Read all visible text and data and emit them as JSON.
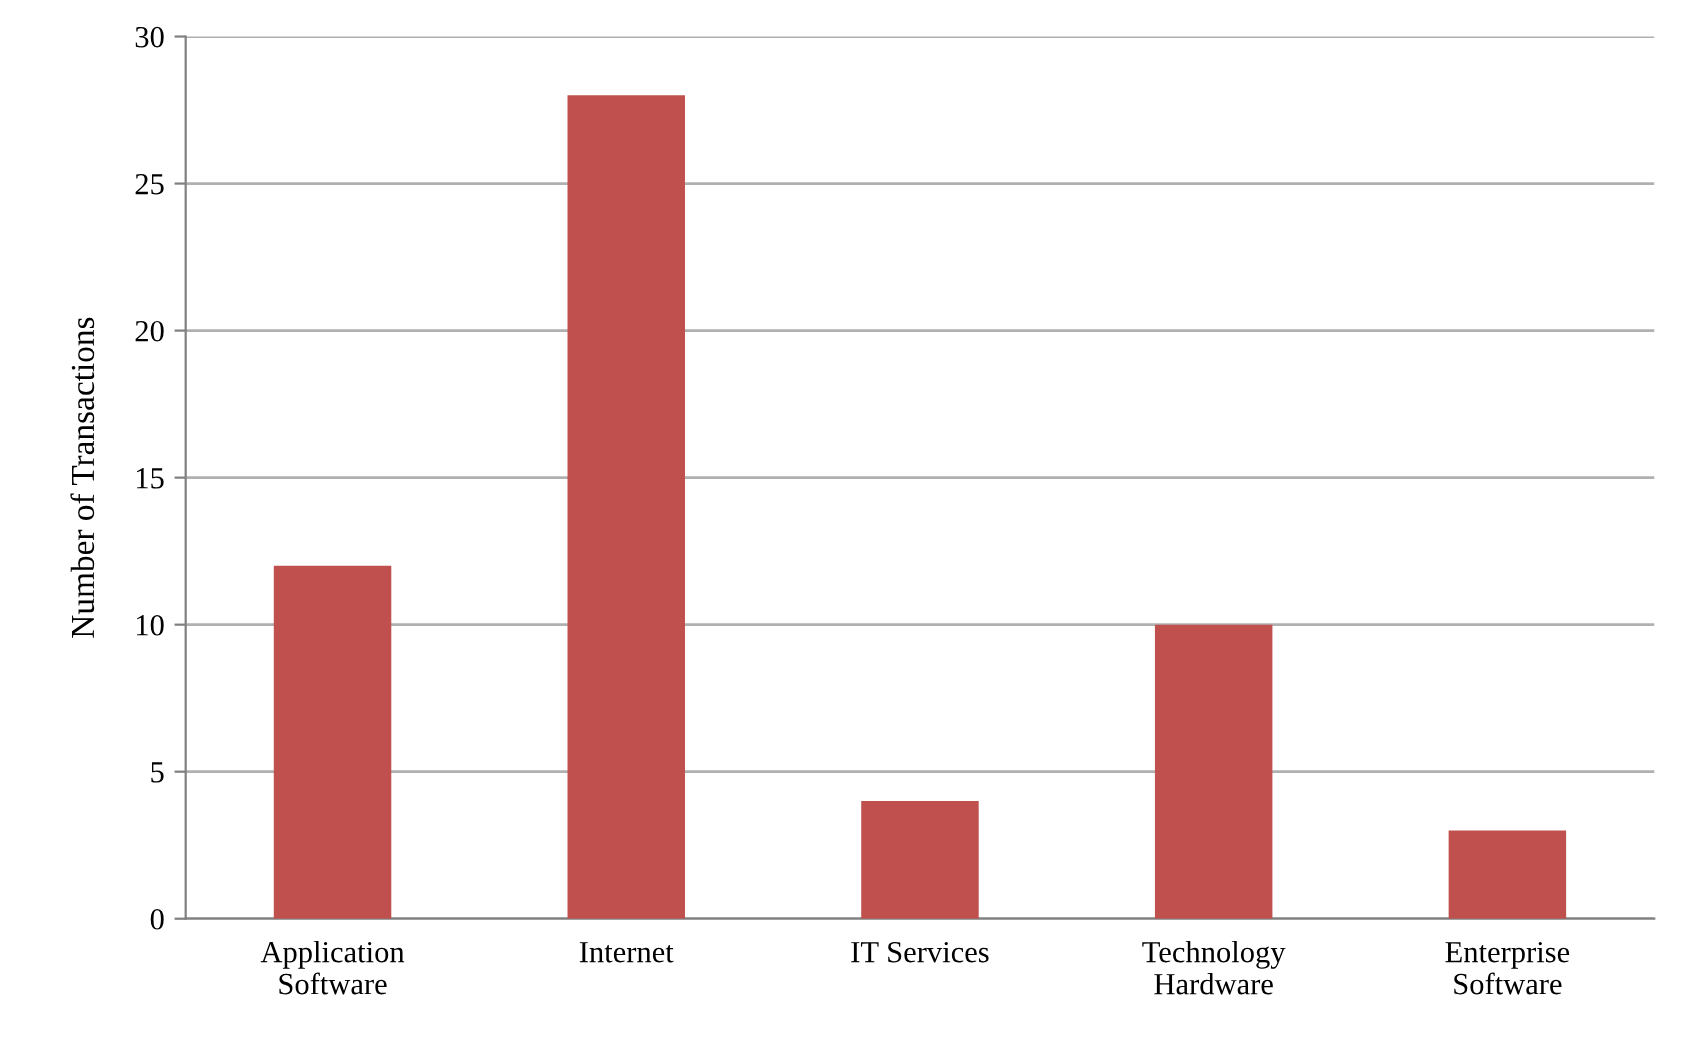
{
  "chart_data": {
    "type": "bar",
    "ylabel": "Number of Transactions",
    "categories": [
      "Application\nSoftware",
      "Internet",
      "IT Services",
      "Technology\nHardware",
      "Enterprise\nSoftware"
    ],
    "values": [
      12,
      28,
      4,
      10,
      3
    ],
    "color": "#c0504d",
    "ylim": [
      0,
      30
    ],
    "yticks": [
      0,
      5,
      10,
      15,
      20,
      25,
      30
    ],
    "grid": "y",
    "legend": false
  }
}
